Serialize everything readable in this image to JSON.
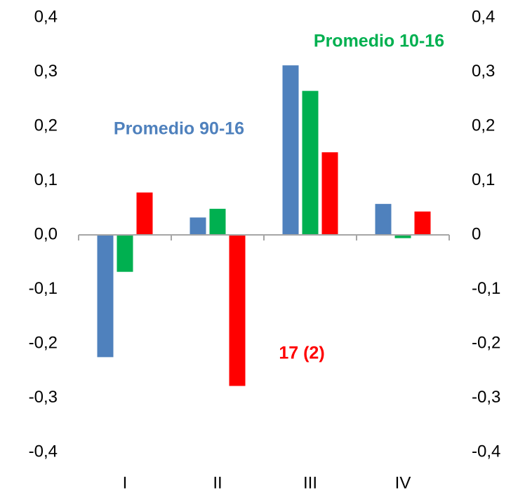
{
  "chart_data": {
    "type": "bar",
    "categories": [
      "I",
      "II",
      "III",
      "IV"
    ],
    "series": [
      {
        "name": "Promedio 90-16",
        "color": "#4f81bd",
        "values": [
          -0.225,
          0.032,
          0.312,
          0.057
        ]
      },
      {
        "name": "Promedio 10-16",
        "color": "#00b050",
        "values": [
          -0.068,
          0.048,
          0.265,
          -0.006
        ]
      },
      {
        "name": "17 (2)",
        "color": "#ff0000",
        "values": [
          0.078,
          -0.278,
          0.152,
          0.043
        ]
      }
    ],
    "ylim": [
      -0.4,
      0.4
    ],
    "yticks": [
      {
        "value": 0.4,
        "label": "0,4"
      },
      {
        "value": 0.3,
        "label": "0,3"
      },
      {
        "value": 0.2,
        "label": "0,2"
      },
      {
        "value": 0.1,
        "label": "0,1"
      },
      {
        "value": 0.0,
        "label": "0,0"
      },
      {
        "value": -0.1,
        "label": "-0,1"
      },
      {
        "value": -0.2,
        "label": "-0,2"
      },
      {
        "value": -0.3,
        "label": "-0,3"
      },
      {
        "value": -0.4,
        "label": "-0,4"
      }
    ],
    "y2lim": [
      -0.4,
      0.4
    ],
    "y2ticks": [
      {
        "value": 0.4,
        "label": "0,4"
      },
      {
        "value": 0.3,
        "label": "0,3"
      },
      {
        "value": 0.2,
        "label": "0,2"
      },
      {
        "value": 0.1,
        "label": "0,1"
      },
      0,
      {
        "value": -0.1,
        "label": "-0,1"
      },
      {
        "value": -0.2,
        "label": "-0,2"
      },
      {
        "value": -0.3,
        "label": "-0,3"
      },
      {
        "value": -0.4,
        "label": "-0,4"
      }
    ],
    "grid": false
  }
}
